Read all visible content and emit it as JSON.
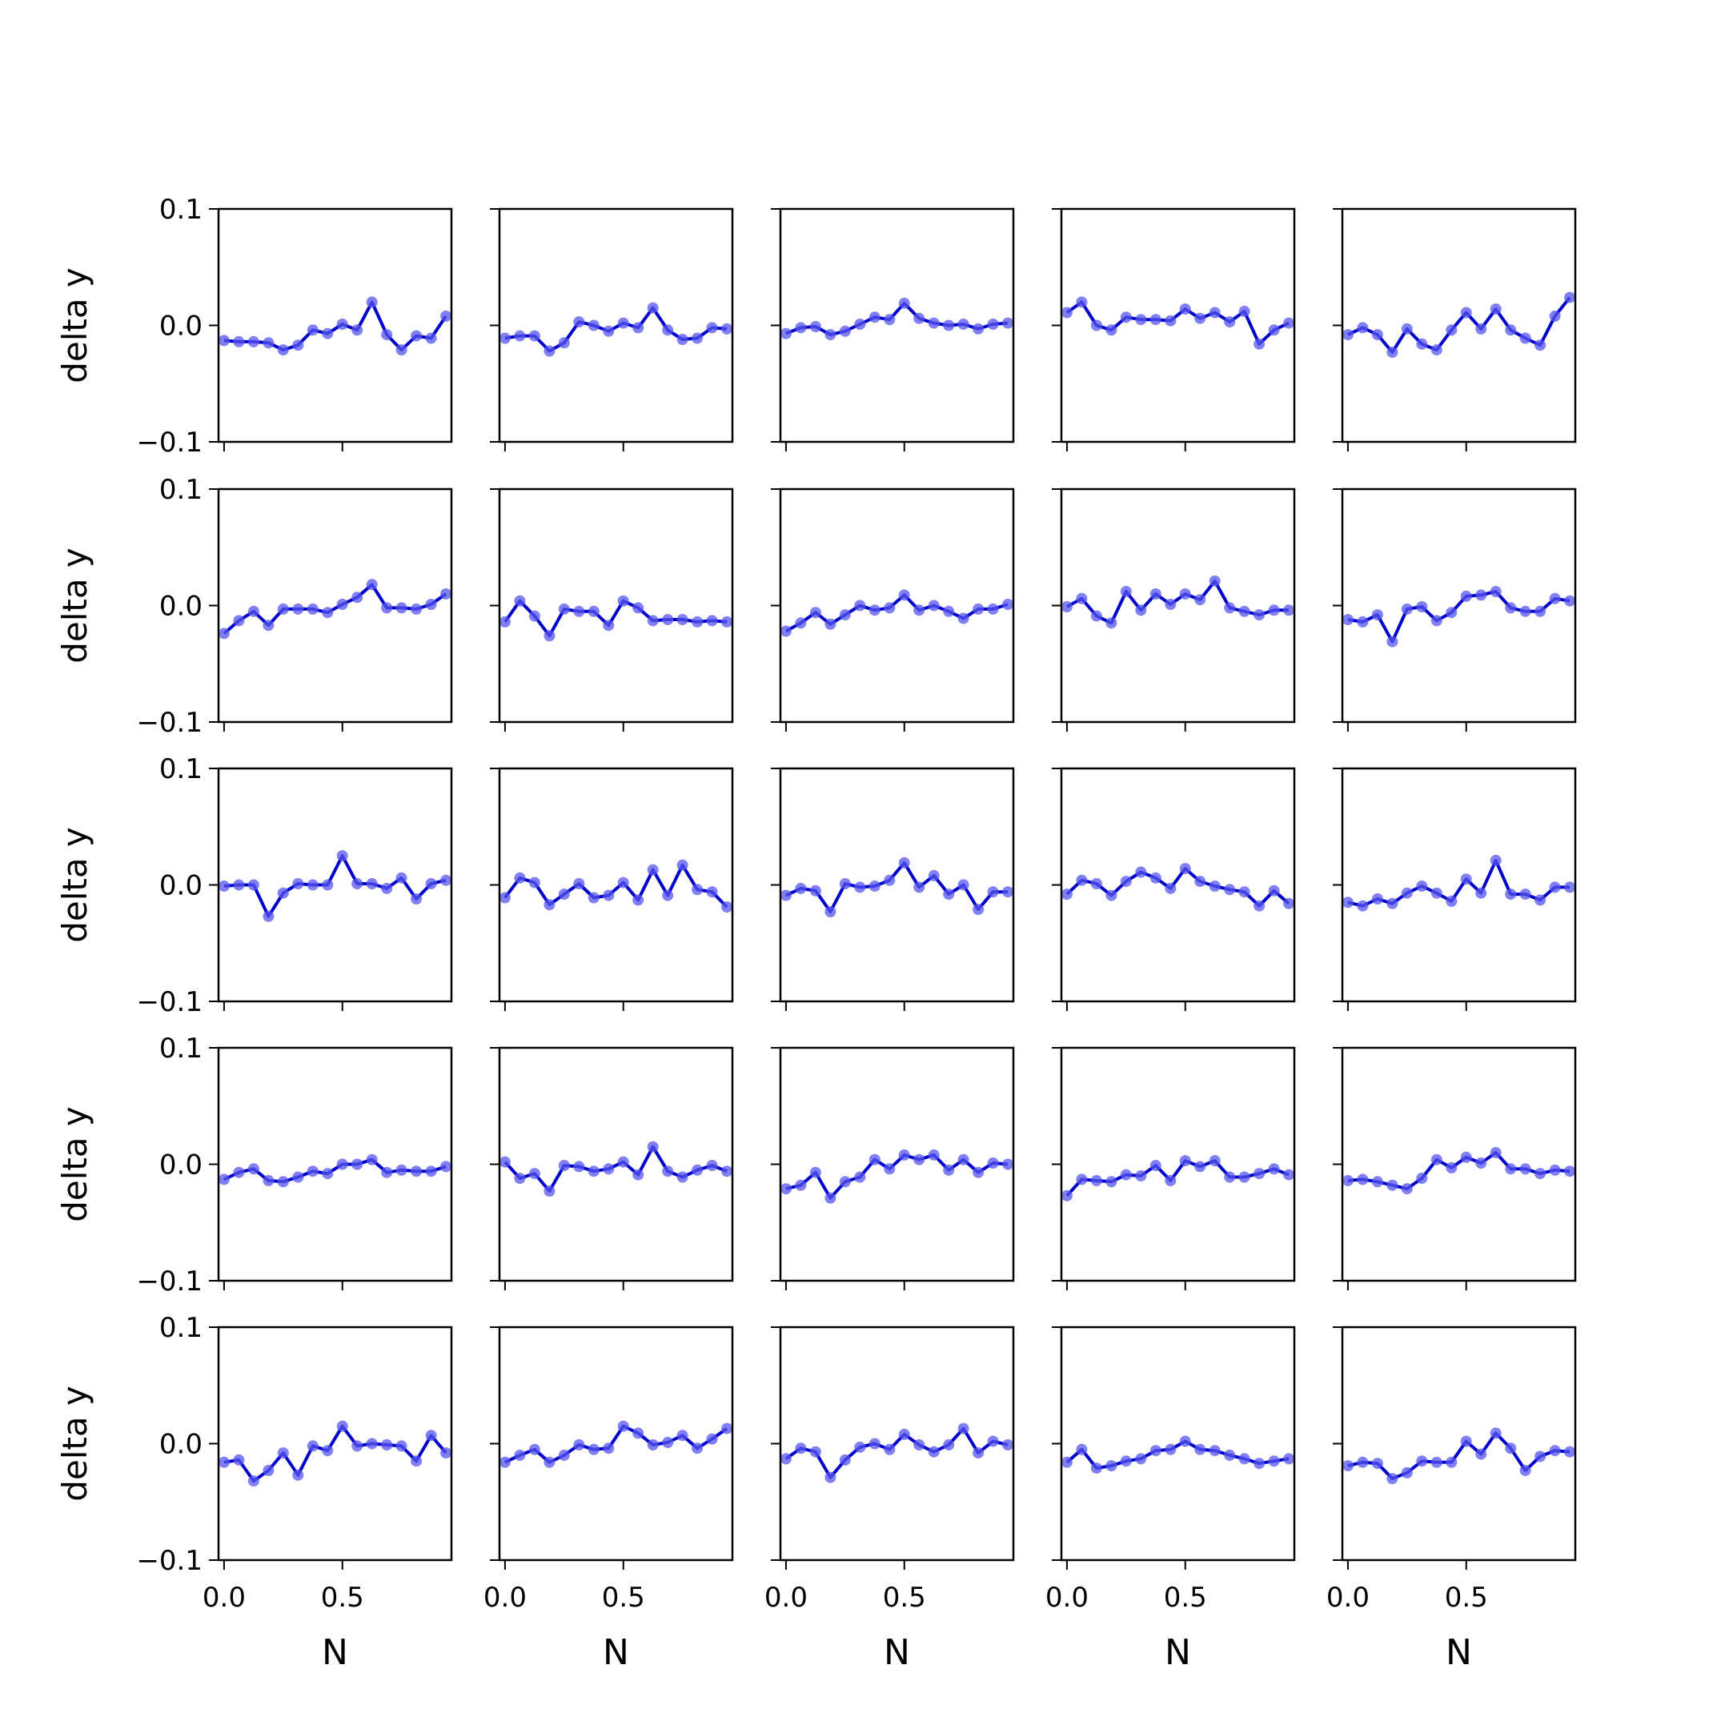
{
  "colors": {
    "line": "#0000cc",
    "marker": "#5555ee",
    "axes": "#000000",
    "background": "#ffffff"
  },
  "chart_data": {
    "type": "line",
    "layout": "5x5 small multiples, shared x and y axes",
    "rows": 5,
    "cols": 5,
    "xlabel": "N",
    "ylabel": "delta y",
    "xlim": [
      -0.0234,
      0.9609
    ],
    "ylim": [
      -0.1,
      0.1
    ],
    "xticks": [
      0.0,
      0.5
    ],
    "xticklabels": [
      "0.0",
      "0.5"
    ],
    "yticks": [
      -0.1,
      0.0,
      0.1
    ],
    "yticklabels": [
      "−0.1",
      "0.0",
      "0.1"
    ],
    "grid": false,
    "legend": "none",
    "x": [
      0,
      0.0625,
      0.125,
      0.1875,
      0.25,
      0.3125,
      0.375,
      0.4375,
      0.5,
      0.5625,
      0.625,
      0.6875,
      0.75,
      0.8125,
      0.875,
      0.9375
    ],
    "panels": [
      {
        "row": 0,
        "col": 0,
        "y": [
          -0.013,
          -0.014,
          -0.014,
          -0.015,
          -0.021,
          -0.017,
          -0.004,
          -0.007,
          0.001,
          -0.004,
          0.02,
          -0.008,
          -0.021,
          -0.009,
          -0.011,
          0.008
        ]
      },
      {
        "row": 0,
        "col": 1,
        "y": [
          -0.011,
          -0.009,
          -0.009,
          -0.022,
          -0.015,
          0.003,
          0.0,
          -0.005,
          0.002,
          -0.002,
          0.015,
          -0.004,
          -0.012,
          -0.011,
          -0.002,
          -0.003
        ]
      },
      {
        "row": 0,
        "col": 2,
        "y": [
          -0.007,
          -0.002,
          -0.001,
          -0.008,
          -0.005,
          0.001,
          0.007,
          0.005,
          0.019,
          0.006,
          0.002,
          0.0,
          0.001,
          -0.003,
          0.001,
          0.002
        ]
      },
      {
        "row": 0,
        "col": 3,
        "y": [
          0.011,
          0.02,
          0.0,
          -0.004,
          0.007,
          0.005,
          0.005,
          0.004,
          0.014,
          0.006,
          0.011,
          0.003,
          0.012,
          -0.016,
          -0.004,
          0.002
        ]
      },
      {
        "row": 0,
        "col": 4,
        "y": [
          -0.008,
          -0.002,
          -0.008,
          -0.023,
          -0.003,
          -0.016,
          -0.021,
          -0.004,
          0.011,
          -0.003,
          0.014,
          -0.004,
          -0.011,
          -0.017,
          0.008,
          0.024
        ]
      },
      {
        "row": 1,
        "col": 0,
        "y": [
          -0.024,
          -0.013,
          -0.005,
          -0.017,
          -0.003,
          -0.003,
          -0.003,
          -0.006,
          0.001,
          0.007,
          0.018,
          -0.002,
          -0.002,
          -0.003,
          0.001,
          0.01
        ]
      },
      {
        "row": 1,
        "col": 1,
        "y": [
          -0.014,
          0.004,
          -0.009,
          -0.026,
          -0.003,
          -0.005,
          -0.005,
          -0.017,
          0.004,
          -0.002,
          -0.013,
          -0.012,
          -0.012,
          -0.014,
          -0.013,
          -0.014
        ]
      },
      {
        "row": 1,
        "col": 2,
        "y": [
          -0.022,
          -0.015,
          -0.006,
          -0.016,
          -0.008,
          0.0,
          -0.004,
          -0.002,
          0.009,
          -0.004,
          0.0,
          -0.005,
          -0.011,
          -0.003,
          -0.003,
          0.001
        ]
      },
      {
        "row": 1,
        "col": 3,
        "y": [
          -0.001,
          0.006,
          -0.009,
          -0.015,
          0.012,
          -0.004,
          0.01,
          0.001,
          0.01,
          0.005,
          0.021,
          -0.002,
          -0.005,
          -0.008,
          -0.004,
          -0.004
        ]
      },
      {
        "row": 1,
        "col": 4,
        "y": [
          -0.012,
          -0.014,
          -0.008,
          -0.031,
          -0.003,
          -0.001,
          -0.013,
          -0.006,
          0.008,
          0.009,
          0.012,
          -0.002,
          -0.005,
          -0.005,
          0.006,
          0.004
        ]
      },
      {
        "row": 2,
        "col": 0,
        "y": [
          -0.001,
          0.0,
          0.0,
          -0.027,
          -0.007,
          0.001,
          0.0,
          0.0,
          0.025,
          0.001,
          0.001,
          -0.003,
          0.006,
          -0.012,
          0.001,
          0.004
        ]
      },
      {
        "row": 2,
        "col": 1,
        "y": [
          -0.011,
          0.006,
          0.002,
          -0.017,
          -0.008,
          0.001,
          -0.011,
          -0.009,
          0.002,
          -0.013,
          0.013,
          -0.009,
          0.017,
          -0.004,
          -0.006,
          -0.019
        ]
      },
      {
        "row": 2,
        "col": 2,
        "y": [
          -0.009,
          -0.003,
          -0.005,
          -0.023,
          0.001,
          -0.002,
          -0.001,
          0.004,
          0.019,
          -0.002,
          0.008,
          -0.008,
          0.0,
          -0.021,
          -0.006,
          -0.006
        ]
      },
      {
        "row": 2,
        "col": 3,
        "y": [
          -0.008,
          0.004,
          0.001,
          -0.009,
          0.003,
          0.011,
          0.006,
          -0.003,
          0.014,
          0.003,
          -0.001,
          -0.004,
          -0.006,
          -0.018,
          -0.005,
          -0.016
        ]
      },
      {
        "row": 2,
        "col": 4,
        "y": [
          -0.015,
          -0.018,
          -0.012,
          -0.016,
          -0.007,
          -0.001,
          -0.007,
          -0.014,
          0.005,
          -0.007,
          0.021,
          -0.008,
          -0.008,
          -0.013,
          -0.002,
          -0.002
        ]
      },
      {
        "row": 3,
        "col": 0,
        "y": [
          -0.013,
          -0.007,
          -0.004,
          -0.014,
          -0.015,
          -0.011,
          -0.006,
          -0.008,
          0.0,
          0.0,
          0.004,
          -0.007,
          -0.005,
          -0.006,
          -0.006,
          -0.002
        ]
      },
      {
        "row": 3,
        "col": 1,
        "y": [
          0.002,
          -0.012,
          -0.008,
          -0.023,
          -0.001,
          -0.002,
          -0.006,
          -0.004,
          0.002,
          -0.009,
          0.015,
          -0.006,
          -0.011,
          -0.005,
          -0.001,
          -0.006
        ]
      },
      {
        "row": 3,
        "col": 2,
        "y": [
          -0.021,
          -0.018,
          -0.007,
          -0.029,
          -0.015,
          -0.011,
          0.004,
          -0.004,
          0.008,
          0.004,
          0.008,
          -0.005,
          0.004,
          -0.007,
          0.001,
          0.0
        ]
      },
      {
        "row": 3,
        "col": 3,
        "y": [
          -0.027,
          -0.013,
          -0.014,
          -0.015,
          -0.009,
          -0.01,
          -0.001,
          -0.014,
          0.003,
          -0.002,
          0.003,
          -0.011,
          -0.011,
          -0.008,
          -0.004,
          -0.009
        ]
      },
      {
        "row": 3,
        "col": 4,
        "y": [
          -0.014,
          -0.013,
          -0.015,
          -0.018,
          -0.021,
          -0.012,
          0.004,
          -0.003,
          0.006,
          0.001,
          0.01,
          -0.004,
          -0.004,
          -0.008,
          -0.005,
          -0.006
        ]
      },
      {
        "row": 4,
        "col": 0,
        "y": [
          -0.016,
          -0.014,
          -0.032,
          -0.023,
          -0.008,
          -0.027,
          -0.002,
          -0.006,
          0.015,
          -0.002,
          0.0,
          -0.001,
          -0.002,
          -0.015,
          0.007,
          -0.008
        ]
      },
      {
        "row": 4,
        "col": 1,
        "y": [
          -0.016,
          -0.01,
          -0.005,
          -0.016,
          -0.01,
          -0.001,
          -0.005,
          -0.004,
          0.015,
          0.009,
          -0.001,
          0.001,
          0.007,
          -0.004,
          0.004,
          0.013
        ]
      },
      {
        "row": 4,
        "col": 2,
        "y": [
          -0.013,
          -0.004,
          -0.007,
          -0.029,
          -0.014,
          -0.003,
          0.0,
          -0.005,
          0.008,
          -0.001,
          -0.007,
          -0.001,
          0.013,
          -0.008,
          0.002,
          -0.001
        ]
      },
      {
        "row": 4,
        "col": 3,
        "y": [
          -0.016,
          -0.005,
          -0.021,
          -0.019,
          -0.015,
          -0.013,
          -0.006,
          -0.005,
          0.002,
          -0.005,
          -0.006,
          -0.01,
          -0.013,
          -0.017,
          -0.015,
          -0.013
        ]
      },
      {
        "row": 4,
        "col": 4,
        "y": [
          -0.019,
          -0.016,
          -0.017,
          -0.03,
          -0.025,
          -0.015,
          -0.016,
          -0.016,
          0.002,
          -0.009,
          0.009,
          -0.004,
          -0.023,
          -0.011,
          -0.006,
          -0.007
        ]
      }
    ]
  }
}
